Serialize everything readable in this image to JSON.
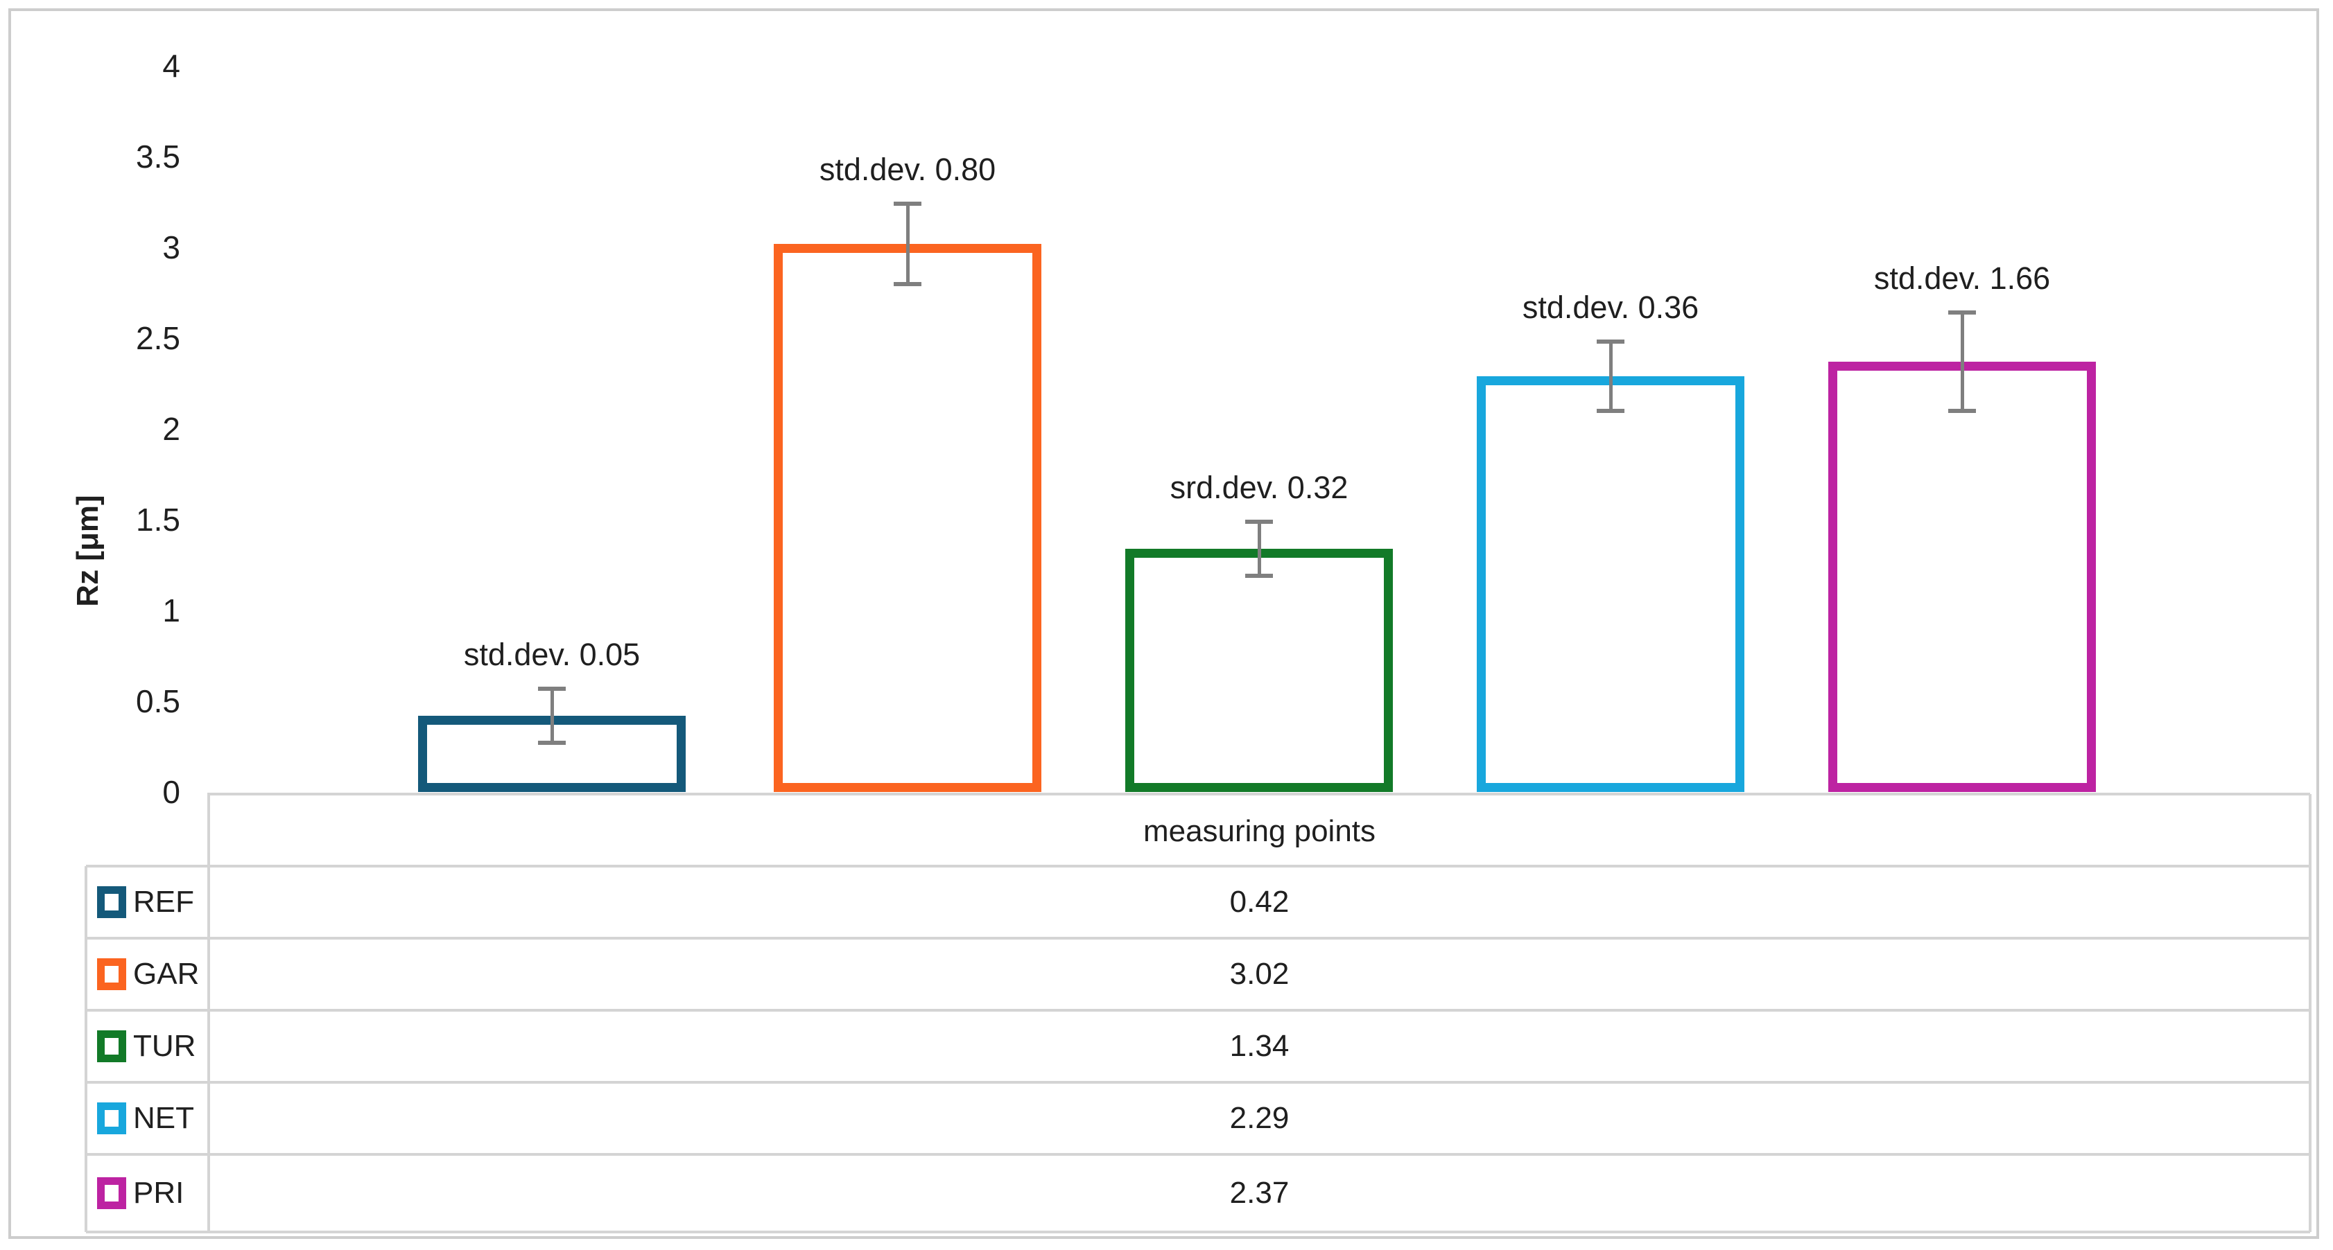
{
  "chart_data": {
    "type": "bar",
    "ylabel": "Rz [μm]",
    "xlabel": "measuring points",
    "ylim": [
      0,
      4
    ],
    "ytick_step": 0.5,
    "yticks": [
      "4",
      "3.5",
      "3",
      "2.5",
      "2",
      "1.5",
      "1",
      "0.5",
      "0"
    ],
    "ytick_values": [
      4,
      3.5,
      3,
      2.5,
      2,
      1.5,
      1,
      0.5,
      0
    ],
    "grid": false,
    "bar_style": "white fill with thick colored outline",
    "legend_position": "left column of data table below chart",
    "error_bar_color": "#7f7f7f",
    "series": [
      {
        "name": "REF",
        "value": 0.42,
        "value_label": "0.42",
        "std_label": "std.dev. 0.05",
        "color": "#14597A",
        "error_whisker_est": 0.15
      },
      {
        "name": "GAR",
        "value": 3.02,
        "value_label": "3.02",
        "std_label": "std.dev. 0.80",
        "color": "#FB6420",
        "error_whisker_est": 0.22
      },
      {
        "name": "TUR",
        "value": 1.34,
        "value_label": "1.34",
        "std_label": "srd.dev. 0.32",
        "color": "#127A28",
        "error_whisker_est": 0.15
      },
      {
        "name": "NET",
        "value": 2.29,
        "value_label": "2.29",
        "std_label": "std.dev. 0.36",
        "color": "#18A7DD",
        "error_whisker_est": 0.19
      },
      {
        "name": "PRI",
        "value": 2.37,
        "value_label": "2.37",
        "std_label": "std.dev. 1.66",
        "color": "#BD23A2",
        "error_whisker_est": 0.27
      }
    ]
  },
  "styles": {
    "frame_color": "#cdcdcd",
    "table_line_color": "#d4d4d4",
    "text_color": "#1f1f1f",
    "bar_fill": "#ffffff"
  }
}
